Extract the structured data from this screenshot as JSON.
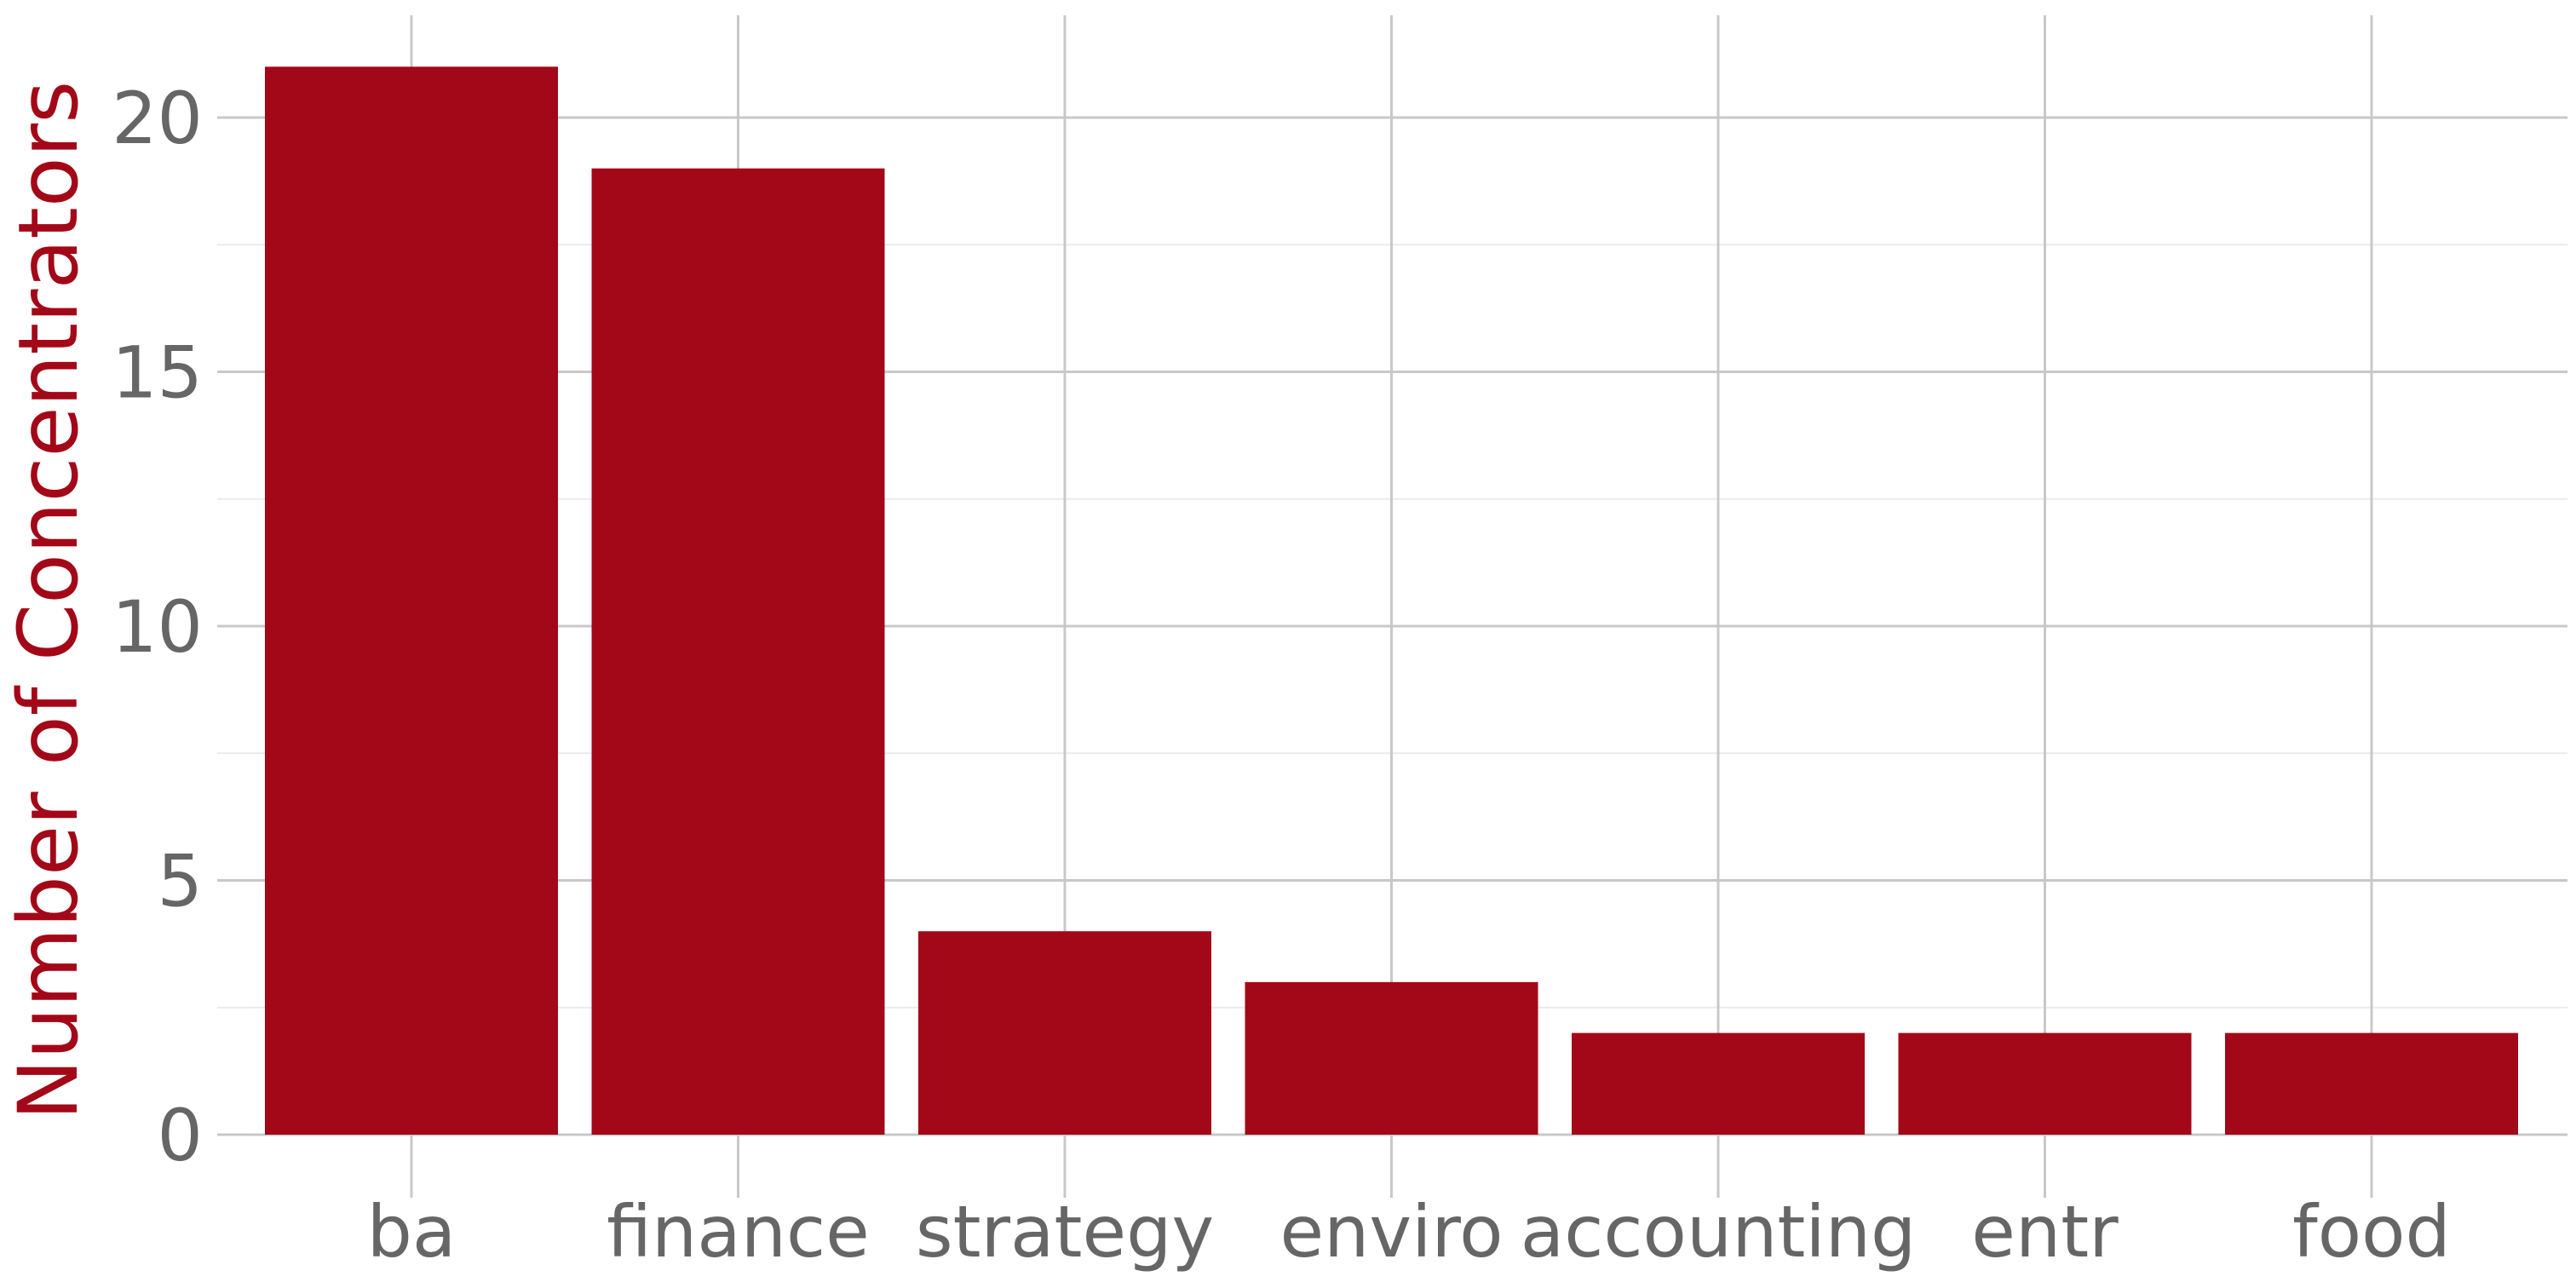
{
  "chart_data": {
    "type": "bar",
    "categories": [
      "ba",
      "finance",
      "strategy",
      "enviro",
      "accounting",
      "entr",
      "food"
    ],
    "values": [
      21,
      19,
      4,
      3,
      2,
      2,
      2
    ],
    "title": "",
    "xlabel": "",
    "ylabel": "Number of Concentrators",
    "ylim": [
      0,
      22
    ],
    "yticks": [
      0,
      5,
      10,
      15,
      20
    ],
    "grid": true,
    "colors": {
      "bar": "#a30818",
      "ylabel": "#a30818",
      "tick_label": "#666666",
      "grid_major": "#c8c8c8",
      "grid_minor": "#ebebeb"
    }
  }
}
